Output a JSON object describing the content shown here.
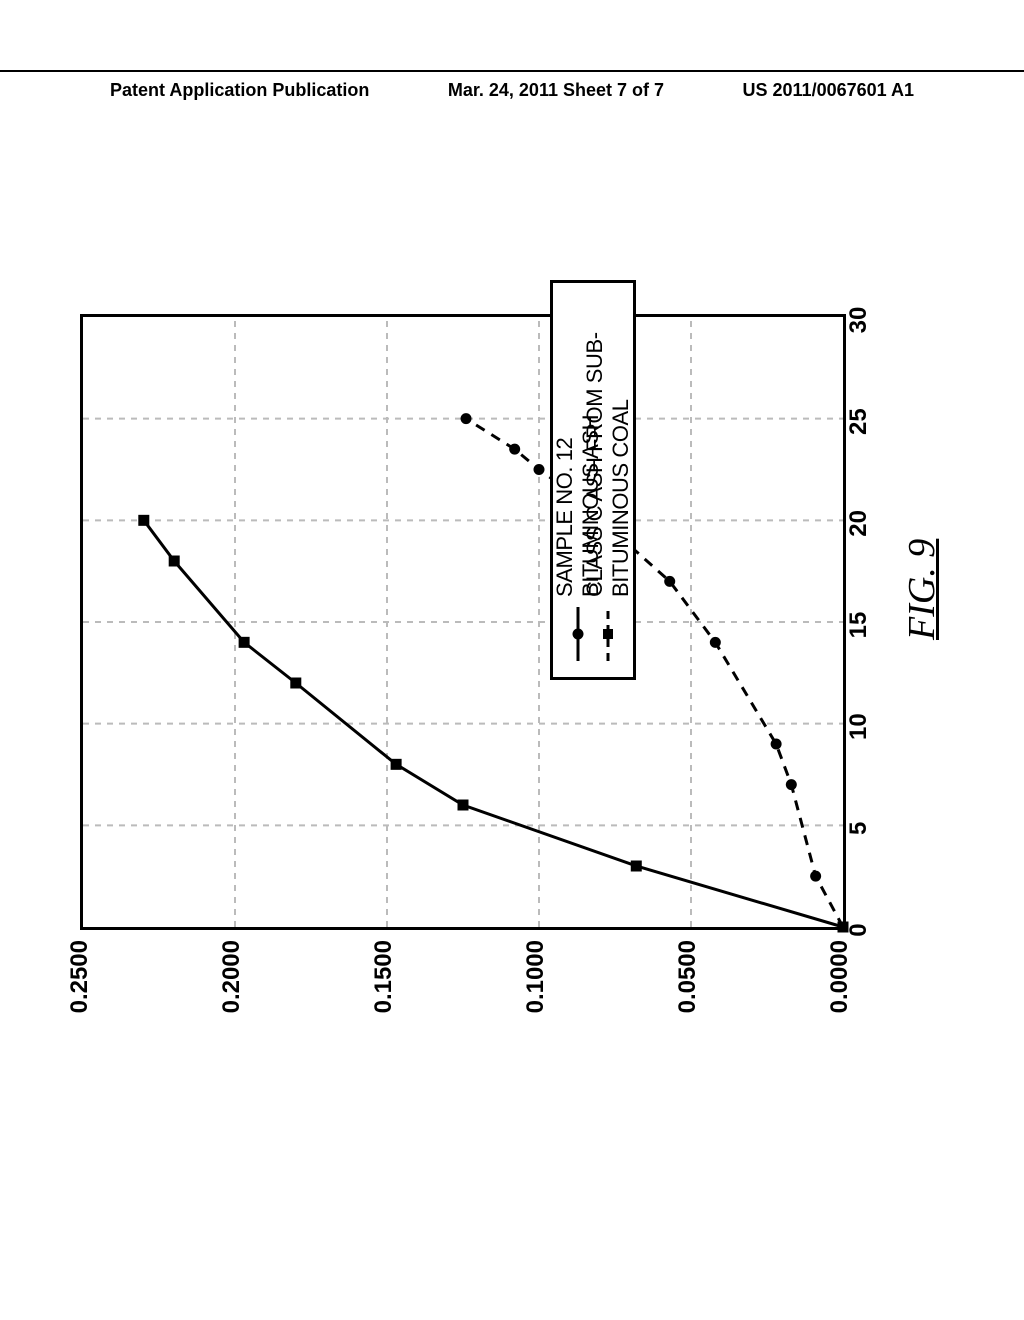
{
  "header": {
    "left": "Patent Application Publication",
    "center": "Mar. 24, 2011  Sheet 7 of 7",
    "right": "US 2011/0067601 A1"
  },
  "figure_label": "FIG. 9",
  "chart": {
    "type": "line",
    "background_color": "#ffffff",
    "grid_color": "#bbbbbb",
    "axes_color": "#000000",
    "y_axis": {
      "min": 0.0,
      "max": 0.25,
      "ticks": [
        0.0,
        0.05,
        0.1,
        0.15,
        0.2,
        0.25
      ],
      "tick_labels": [
        "0.0000",
        "0.0500",
        "0.1000",
        "0.1500",
        "0.2000",
        "0.2500"
      ],
      "label_fontsize": 24
    },
    "x_axis": {
      "min": 0,
      "max": 30,
      "ticks": [
        0,
        5,
        10,
        15,
        20,
        25,
        30
      ],
      "tick_labels": [
        "0",
        "5",
        "10",
        "15",
        "20",
        "25",
        "30"
      ],
      "label_fontsize": 24
    },
    "series": [
      {
        "name": "SAMPLE NO. 12 BITUMINOUS ASH",
        "marker": "circle",
        "marker_size": 11,
        "marker_color": "#000000",
        "line_style": "dashed",
        "line_width": 3,
        "line_color": "#000000",
        "points": [
          {
            "x": 0,
            "y": 0.0
          },
          {
            "x": 2.5,
            "y": 0.009
          },
          {
            "x": 7,
            "y": 0.017
          },
          {
            "x": 9,
            "y": 0.022
          },
          {
            "x": 14,
            "y": 0.042
          },
          {
            "x": 17,
            "y": 0.057
          },
          {
            "x": 19,
            "y": 0.072
          },
          {
            "x": 21,
            "y": 0.086
          },
          {
            "x": 22.5,
            "y": 0.1
          },
          {
            "x": 23.5,
            "y": 0.108
          },
          {
            "x": 25,
            "y": 0.124
          }
        ]
      },
      {
        "name": "CLASS C ASH FROM SUB-BITUMINOUS COAL",
        "marker": "square",
        "marker_size": 11,
        "marker_color": "#000000",
        "line_style": "solid",
        "line_width": 3,
        "line_color": "#000000",
        "points": [
          {
            "x": 0,
            "y": 0.0
          },
          {
            "x": 3,
            "y": 0.068
          },
          {
            "x": 6,
            "y": 0.125
          },
          {
            "x": 8,
            "y": 0.147
          },
          {
            "x": 12,
            "y": 0.18
          },
          {
            "x": 14,
            "y": 0.197
          },
          {
            "x": 18,
            "y": 0.22
          },
          {
            "x": 20,
            "y": 0.23
          }
        ]
      }
    ],
    "legend": {
      "position_note": "lower-right inside plot (in rotated frame appears upper-right text block)",
      "entries": [
        {
          "marker": "circle",
          "line_style": "solid",
          "label": "SAMPLE NO. 12 BITUMINOUS ASH"
        },
        {
          "marker": "square",
          "line_style": "dashed",
          "label": "CLASS C ASH FROM SUB-BITUMINOUS COAL"
        }
      ],
      "fontsize": 22
    }
  }
}
